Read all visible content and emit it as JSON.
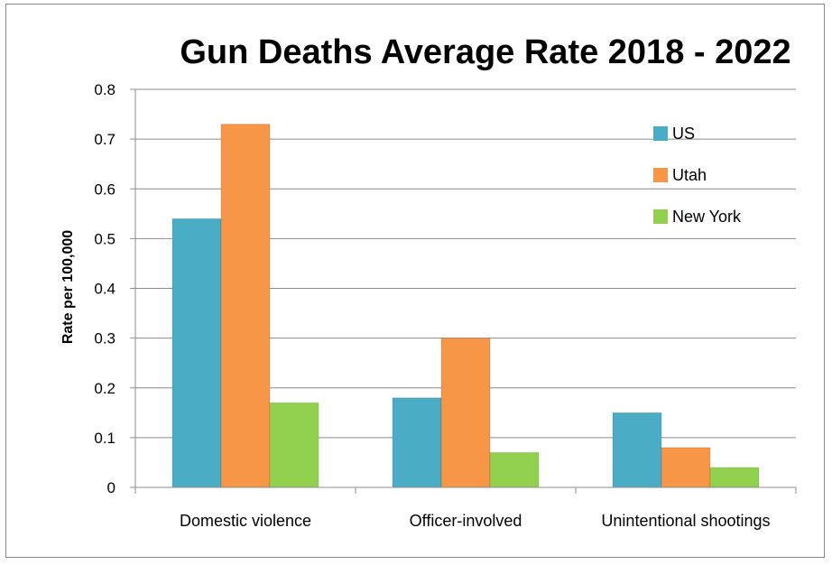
{
  "chart_data": {
    "type": "bar",
    "title": "Gun Deaths Average Rate 2018 - 2022",
    "xlabel": "",
    "ylabel": "Rate per 100,000",
    "ylim": [
      0,
      0.8
    ],
    "yticks": [
      "0",
      "0.1",
      "0.2",
      "0.3",
      "0.4",
      "0.5",
      "0.6",
      "0.7",
      "0.8"
    ],
    "grid": true,
    "legend_position": "top-right",
    "categories": [
      "Domestic violence",
      "Officer-involved",
      "Unintentional shootings"
    ],
    "series": [
      {
        "name": "US",
        "color": "#4bacc6",
        "values": [
          0.54,
          0.18,
          0.15
        ]
      },
      {
        "name": "Utah",
        "color": "#f79646",
        "values": [
          0.73,
          0.3,
          0.08
        ]
      },
      {
        "name": "New York",
        "color": "#92d050",
        "values": [
          0.17,
          0.07,
          0.04
        ]
      }
    ]
  }
}
